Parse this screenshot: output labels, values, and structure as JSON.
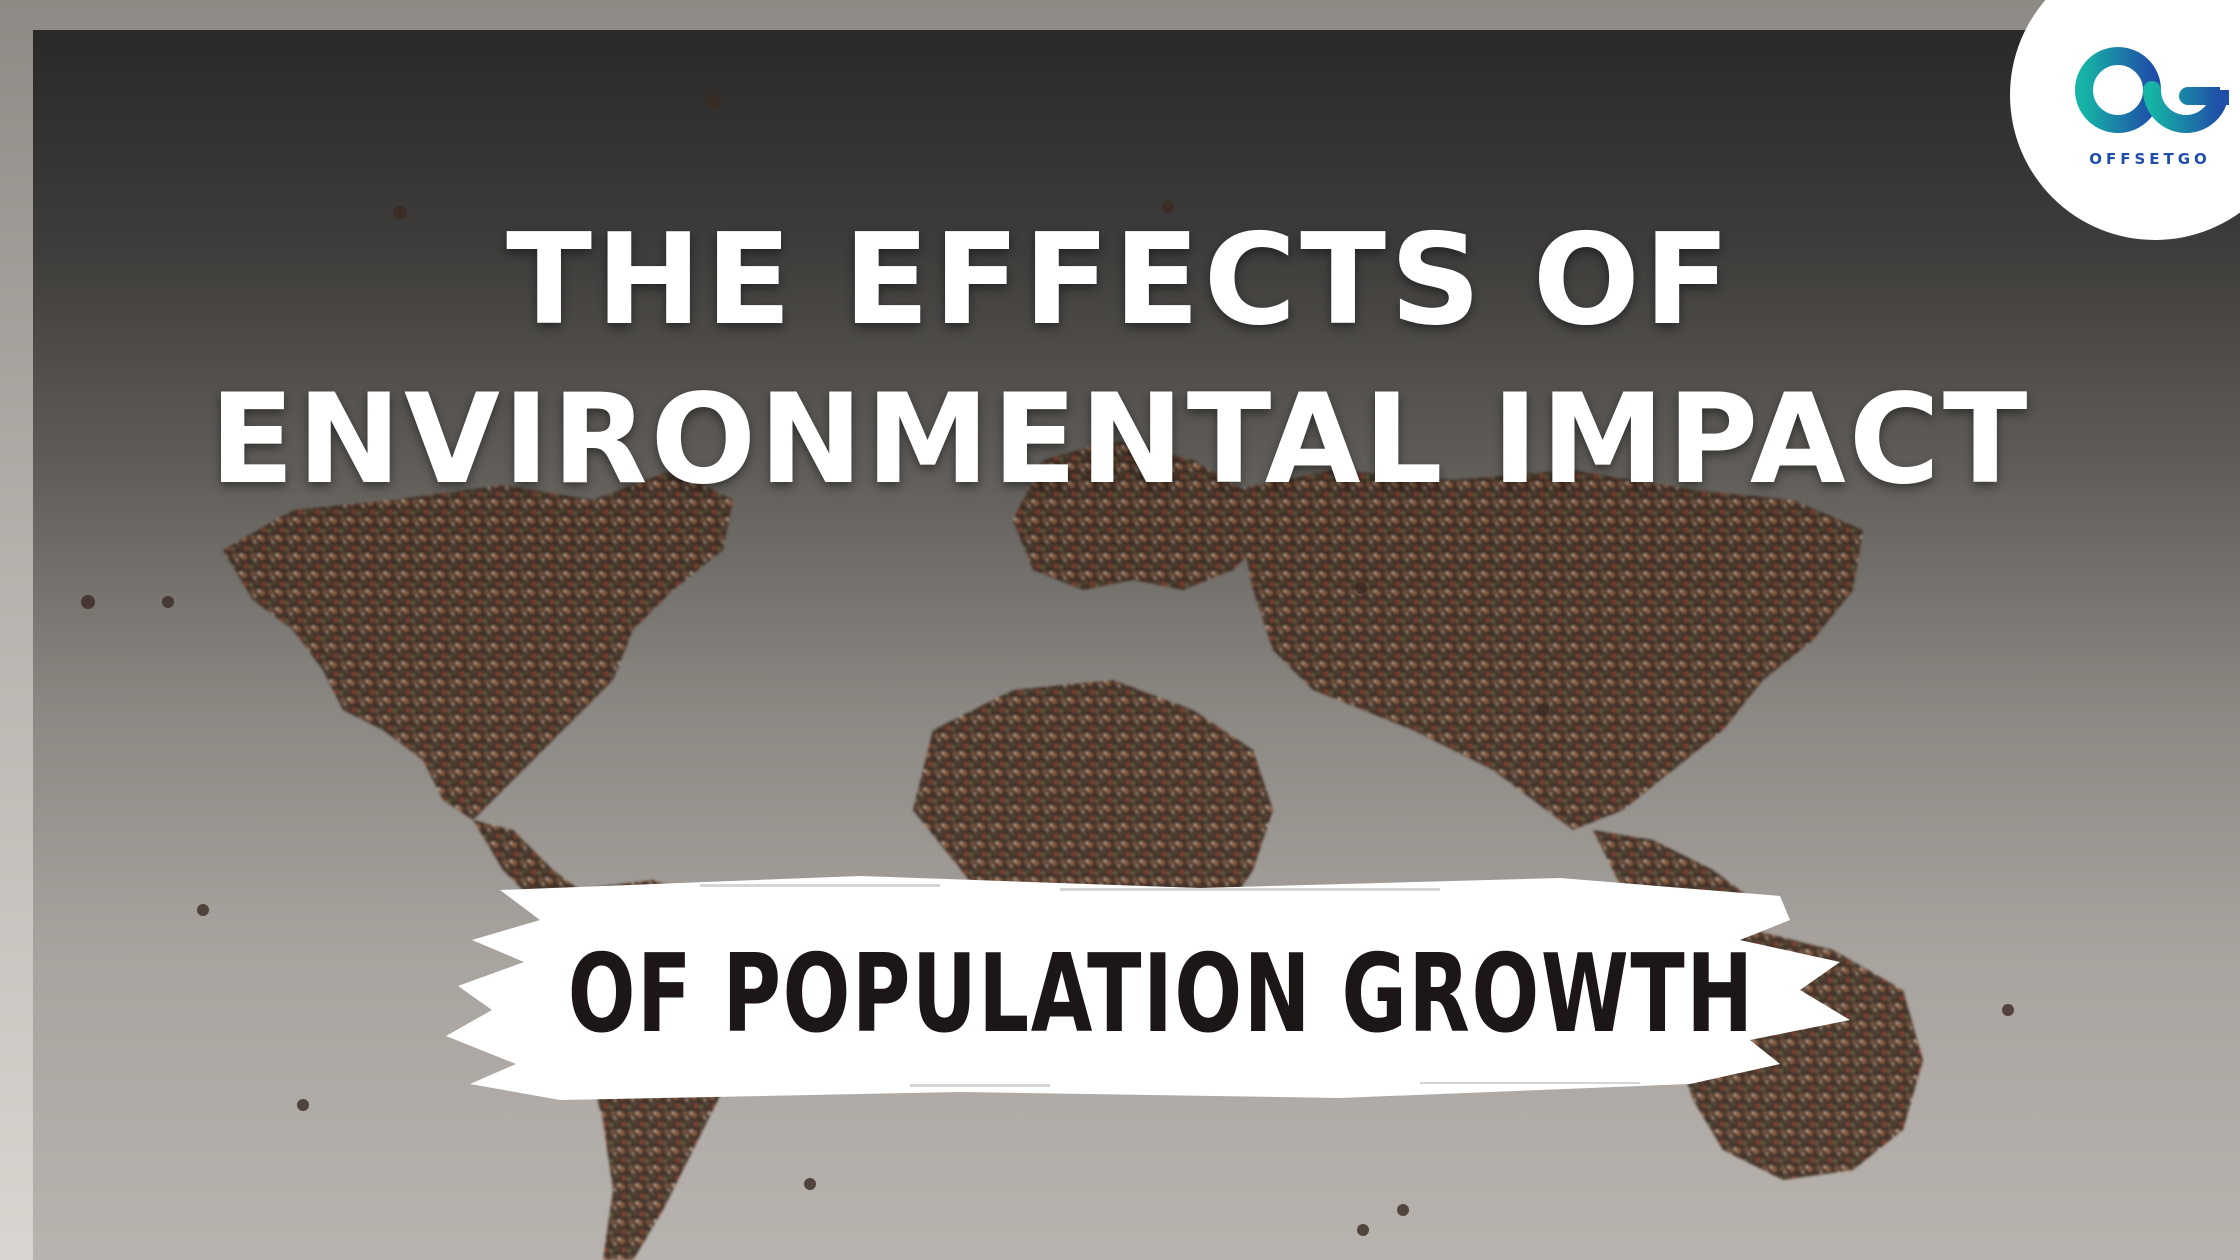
{
  "headline": {
    "line1": "THE EFFECTS OF",
    "line2": "ENVIRONMENTAL IMPACT"
  },
  "subheadline": "OF POPULATION GROWTH",
  "brand": {
    "name": "OFFSETGO",
    "logo_icon": "og-monogram-icon",
    "colors": {
      "teal": "#16b3a6",
      "blue": "#1f4ea8"
    }
  },
  "background": {
    "subject": "crowd-world-map-photo"
  }
}
